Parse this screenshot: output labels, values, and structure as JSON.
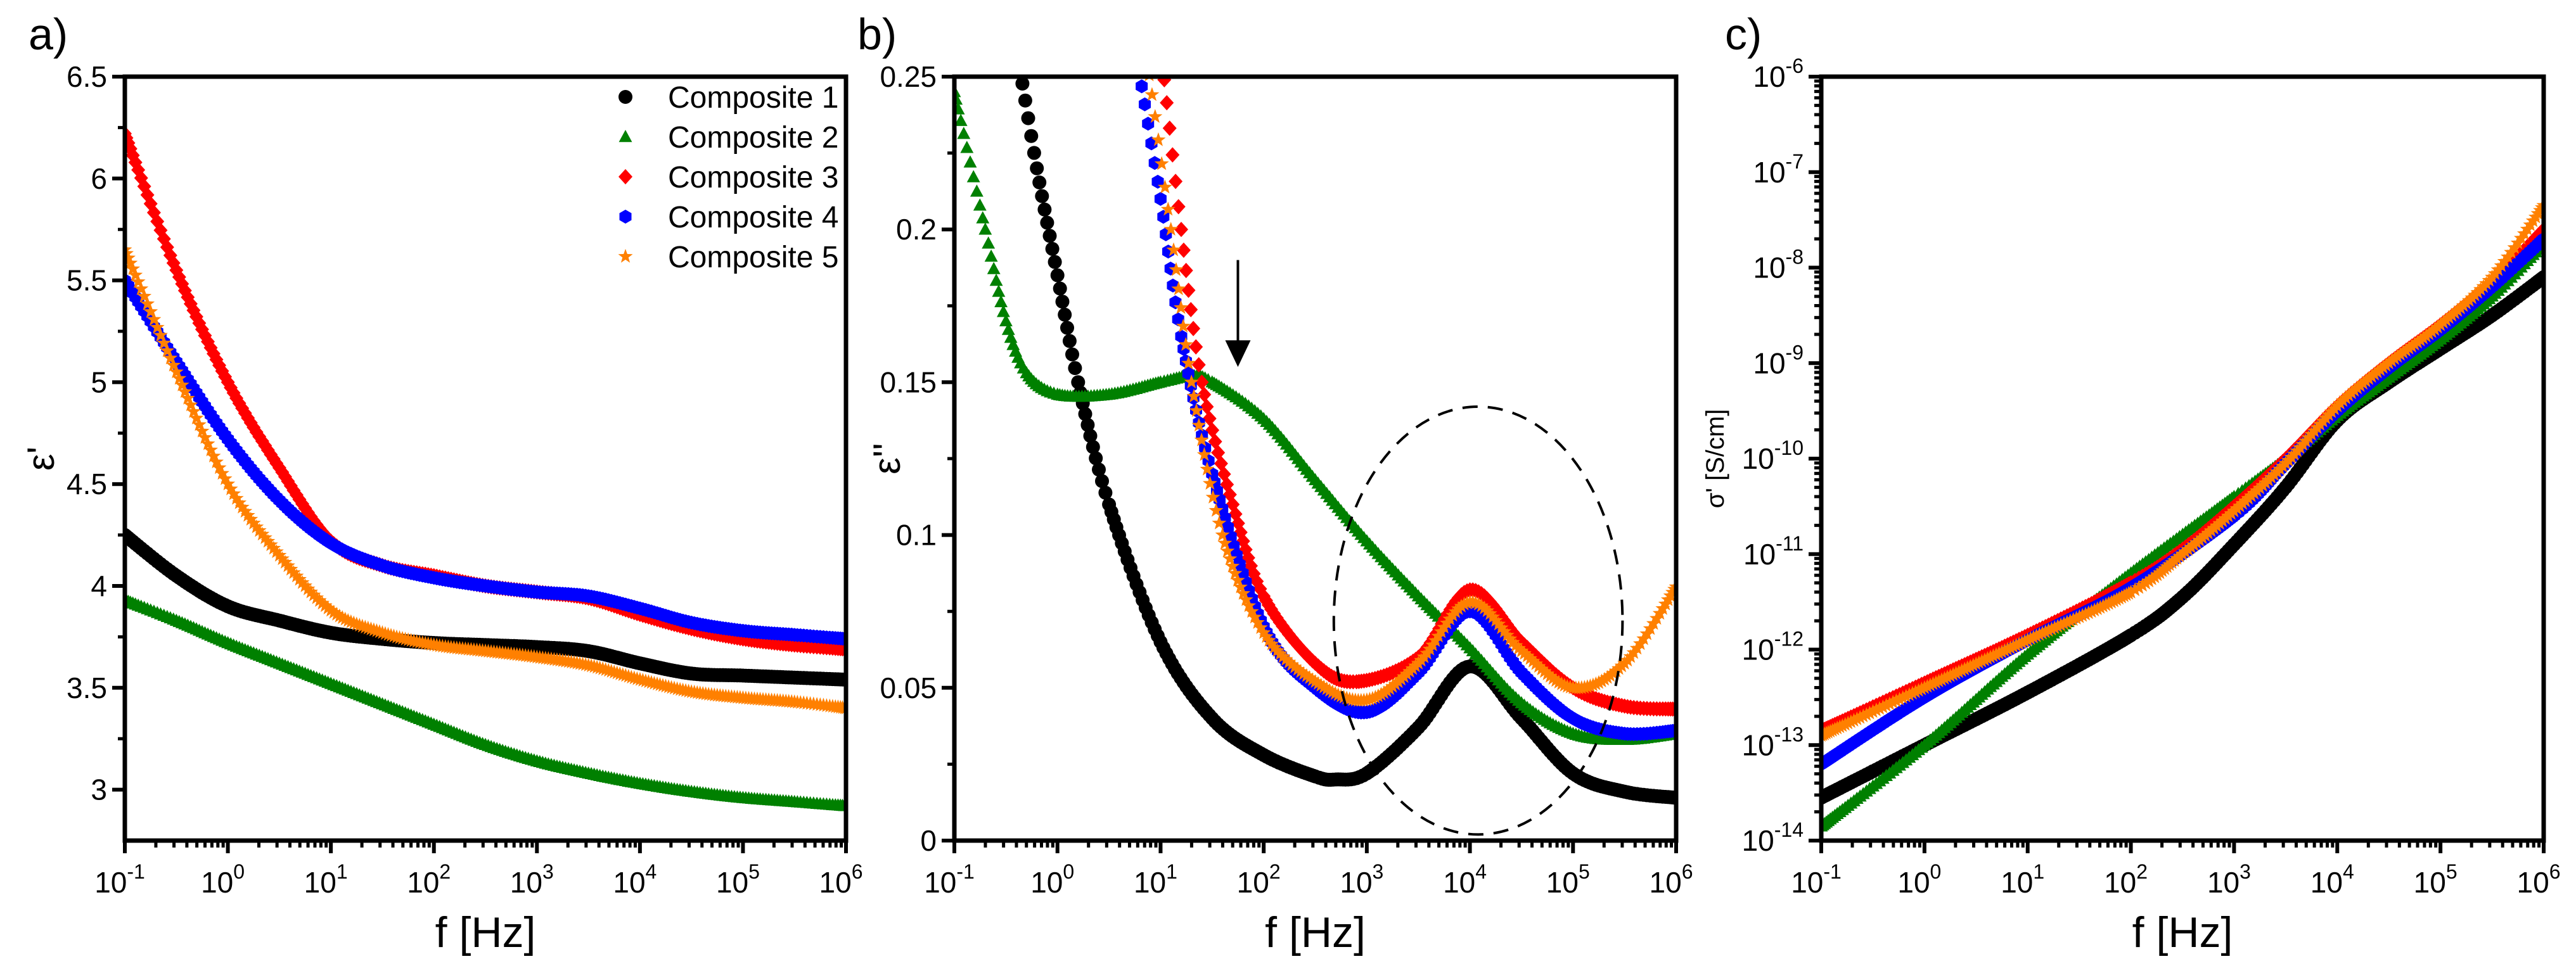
{
  "legend": [
    {
      "label": "Composite 1",
      "color": "#000000",
      "marker": "circle"
    },
    {
      "label": "Composite 2",
      "color": "#008000",
      "marker": "triangle"
    },
    {
      "label": "Composite 3",
      "color": "#ff0000",
      "marker": "diamond"
    },
    {
      "label": "Composite 4",
      "color": "#0000ff",
      "marker": "hexagon"
    },
    {
      "label": "Composite 5",
      "color": "#ff8000",
      "marker": "star"
    }
  ],
  "chart_data": [
    {
      "panel_label": "a)",
      "type": "scatter",
      "xlabel": "f [Hz]",
      "ylabel": "ε'",
      "xscale": "log",
      "xlim_log10": [
        -1,
        6
      ],
      "ylim": [
        2.75,
        6.5
      ],
      "legend_position": "top-right",
      "xticks": [
        {
          "base": "10",
          "exp": "-1",
          "v": -1
        },
        {
          "base": "10",
          "exp": "0",
          "v": 0
        },
        {
          "base": "10",
          "exp": "1",
          "v": 1
        },
        {
          "base": "10",
          "exp": "2",
          "v": 2
        },
        {
          "base": "10",
          "exp": "3",
          "v": 3
        },
        {
          "base": "10",
          "exp": "4",
          "v": 4
        },
        {
          "base": "10",
          "exp": "5",
          "v": 5
        },
        {
          "base": "10",
          "exp": "6",
          "v": 6
        }
      ],
      "yticks": [
        {
          "label": "3",
          "v": 3
        },
        {
          "label": "3.5",
          "v": 3.5
        },
        {
          "label": "4",
          "v": 4
        },
        {
          "label": "4.5",
          "v": 4.5
        },
        {
          "label": "5",
          "v": 5
        },
        {
          "label": "5.5",
          "v": 5.5
        },
        {
          "label": "6",
          "v": 6
        },
        {
          "label": "6.5",
          "v": 6.5
        }
      ],
      "series": [
        {
          "name": "Composite 1",
          "log10_f": [
            -1,
            -0.5,
            0,
            0.5,
            1,
            1.5,
            2,
            2.5,
            3,
            3.5,
            4,
            4.5,
            5,
            5.5,
            6
          ],
          "y": [
            4.25,
            4.05,
            3.9,
            3.83,
            3.77,
            3.74,
            3.72,
            3.71,
            3.7,
            3.68,
            3.62,
            3.57,
            3.56,
            3.55,
            3.54
          ]
        },
        {
          "name": "Composite 2",
          "log10_f": [
            -1,
            -0.5,
            0,
            0.5,
            1,
            1.5,
            2,
            2.5,
            3,
            3.5,
            4,
            4.5,
            5,
            5.5,
            6
          ],
          "y": [
            3.93,
            3.83,
            3.72,
            3.62,
            3.52,
            3.42,
            3.32,
            3.22,
            3.14,
            3.08,
            3.03,
            2.99,
            2.96,
            2.94,
            2.92
          ]
        },
        {
          "name": "Composite 3",
          "log10_f": [
            -1,
            -0.5,
            0,
            0.5,
            1,
            1.5,
            2,
            2.5,
            3,
            3.5,
            4,
            4.5,
            5,
            5.5,
            6
          ],
          "y": [
            6.22,
            5.55,
            5.0,
            4.58,
            4.22,
            4.1,
            4.05,
            4.0,
            3.97,
            3.94,
            3.86,
            3.79,
            3.74,
            3.71,
            3.69
          ]
        },
        {
          "name": "Composite 4",
          "log10_f": [
            -1,
            -0.5,
            0,
            0.5,
            1,
            1.5,
            2,
            2.5,
            3,
            3.5,
            4,
            4.5,
            5,
            5.5,
            6
          ],
          "y": [
            5.5,
            5.1,
            4.72,
            4.42,
            4.21,
            4.1,
            4.04,
            4.0,
            3.97,
            3.95,
            3.89,
            3.82,
            3.78,
            3.76,
            3.74
          ]
        },
        {
          "name": "Composite 5",
          "log10_f": [
            -1,
            -0.5,
            0,
            0.5,
            1,
            1.5,
            2,
            2.5,
            3,
            3.5,
            4,
            4.5,
            5,
            5.5,
            6
          ],
          "y": [
            5.65,
            5.05,
            4.5,
            4.15,
            3.88,
            3.77,
            3.71,
            3.68,
            3.65,
            3.61,
            3.54,
            3.48,
            3.45,
            3.43,
            3.4
          ]
        }
      ]
    },
    {
      "panel_label": "b)",
      "type": "scatter",
      "xlabel": "f [Hz]",
      "ylabel": "ε''",
      "xscale": "log",
      "xlim_log10": [
        -1,
        6
      ],
      "ylim": [
        0,
        0.25
      ],
      "xticks": [
        {
          "base": "10",
          "exp": "-1",
          "v": -1
        },
        {
          "base": "10",
          "exp": "0",
          "v": 0
        },
        {
          "base": "10",
          "exp": "1",
          "v": 1
        },
        {
          "base": "10",
          "exp": "2",
          "v": 2
        },
        {
          "base": "10",
          "exp": "3",
          "v": 3
        },
        {
          "base": "10",
          "exp": "4",
          "v": 4
        },
        {
          "base": "10",
          "exp": "5",
          "v": 5
        },
        {
          "base": "10",
          "exp": "6",
          "v": 6
        }
      ],
      "yticks": [
        {
          "label": "0",
          "v": 0
        },
        {
          "label": "0.05",
          "v": 0.05
        },
        {
          "label": "0.1",
          "v": 0.1
        },
        {
          "label": "0.15",
          "v": 0.15
        },
        {
          "label": "0.2",
          "v": 0.2
        },
        {
          "label": "0.25",
          "v": 0.25
        }
      ],
      "annotations": {
        "arrow": {
          "log10_f": 1.75,
          "y_from": 0.19,
          "y_to": 0.155
        },
        "dashed_ellipse": {
          "center_log10_f": 4.08,
          "center_y": 0.072,
          "half_width_decades": 1.4,
          "half_height": 0.07
        }
      },
      "series": [
        {
          "name": "Composite 1",
          "log10_f": [
            -0.4,
            -0.2,
            0,
            0.2,
            0.5,
            1,
            1.5,
            2,
            2.5,
            2.7,
            3,
            3.5,
            4,
            4.5,
            5,
            5.5,
            6
          ],
          "y": [
            0.26,
            0.22,
            0.185,
            0.15,
            0.11,
            0.065,
            0.04,
            0.028,
            0.021,
            0.02,
            0.022,
            0.037,
            0.057,
            0.04,
            0.022,
            0.016,
            0.014
          ]
        },
        {
          "name": "Composite 2",
          "log10_f": [
            -1,
            -0.7,
            -0.5,
            -0.3,
            0,
            0.5,
            1,
            1.3,
            1.5,
            2,
            2.5,
            3,
            3.5,
            4,
            4.5,
            5,
            5.5,
            6
          ],
          "y": [
            0.245,
            0.2,
            0.17,
            0.153,
            0.146,
            0.146,
            0.15,
            0.152,
            0.15,
            0.138,
            0.118,
            0.098,
            0.08,
            0.063,
            0.045,
            0.035,
            0.033,
            0.035
          ]
        },
        {
          "name": "Composite 3",
          "log10_f": [
            1.0,
            1.2,
            1.4,
            1.7,
            2,
            2.5,
            2.9,
            3.5,
            4,
            4.5,
            5,
            5.5,
            6
          ],
          "y": [
            0.26,
            0.2,
            0.15,
            0.11,
            0.08,
            0.058,
            0.052,
            0.06,
            0.082,
            0.065,
            0.05,
            0.044,
            0.043
          ]
        },
        {
          "name": "Composite 4",
          "log10_f": [
            0.75,
            1,
            1.2,
            1.5,
            2,
            2.5,
            3,
            3.5,
            4,
            4.5,
            5,
            5.5,
            6
          ],
          "y": [
            0.26,
            0.21,
            0.165,
            0.12,
            0.07,
            0.05,
            0.042,
            0.055,
            0.075,
            0.055,
            0.04,
            0.035,
            0.036
          ]
        },
        {
          "name": "Composite 5",
          "log10_f": [
            0.85,
            1.1,
            1.3,
            1.6,
            2,
            2.5,
            3,
            3.5,
            4,
            4.5,
            5,
            5.5,
            6
          ],
          "y": [
            0.26,
            0.2,
            0.15,
            0.1,
            0.068,
            0.052,
            0.046,
            0.058,
            0.078,
            0.062,
            0.05,
            0.058,
            0.083
          ]
        }
      ]
    },
    {
      "panel_label": "c)",
      "type": "scatter",
      "xlabel": "f [Hz]",
      "ylabel": "σ' [S/cm]",
      "xscale": "log",
      "yscale": "log",
      "xlim_log10": [
        -1,
        6
      ],
      "ylim_log10": [
        -14,
        -6
      ],
      "xticks": [
        {
          "base": "10",
          "exp": "-1",
          "v": -1
        },
        {
          "base": "10",
          "exp": "0",
          "v": 0
        },
        {
          "base": "10",
          "exp": "1",
          "v": 1
        },
        {
          "base": "10",
          "exp": "2",
          "v": 2
        },
        {
          "base": "10",
          "exp": "3",
          "v": 3
        },
        {
          "base": "10",
          "exp": "4",
          "v": 4
        },
        {
          "base": "10",
          "exp": "5",
          "v": 5
        },
        {
          "base": "10",
          "exp": "6",
          "v": 6
        }
      ],
      "yticks": [
        {
          "base": "10",
          "exp": "-14",
          "v": -14
        },
        {
          "base": "10",
          "exp": "-13",
          "v": -13
        },
        {
          "base": "10",
          "exp": "-12",
          "v": -12
        },
        {
          "base": "10",
          "exp": "-11",
          "v": -11
        },
        {
          "base": "10",
          "exp": "-10",
          "v": -10
        },
        {
          "base": "10",
          "exp": "-9",
          "v": -9
        },
        {
          "base": "10",
          "exp": "-8",
          "v": -8
        },
        {
          "base": "10",
          "exp": "-7",
          "v": -7
        },
        {
          "base": "10",
          "exp": "-6",
          "v": -6
        }
      ],
      "series": [
        {
          "name": "Composite 1",
          "log10_f": [
            -1,
            0,
            1,
            2,
            2.5,
            3,
            3.5,
            4,
            4.5,
            5,
            5.5,
            6
          ],
          "log10_y": [
            -13.55,
            -13.0,
            -12.45,
            -11.85,
            -11.45,
            -10.9,
            -10.3,
            -9.6,
            -9.2,
            -8.85,
            -8.5,
            -8.1
          ]
        },
        {
          "name": "Composite 2",
          "log10_f": [
            -1,
            0,
            1,
            2,
            3,
            3.5,
            4,
            4.5,
            5,
            5.5,
            6
          ],
          "log10_y": [
            -13.85,
            -13.0,
            -12.05,
            -11.2,
            -10.4,
            -10.0,
            -9.55,
            -9.15,
            -8.75,
            -8.3,
            -7.75
          ]
        },
        {
          "name": "Composite 3",
          "log10_f": [
            -1,
            0,
            1,
            2,
            2.5,
            3,
            3.5,
            4,
            4.5,
            5,
            5.5,
            6
          ],
          "log10_y": [
            -12.85,
            -12.35,
            -11.85,
            -11.3,
            -10.95,
            -10.5,
            -10.0,
            -9.45,
            -9.0,
            -8.6,
            -8.15,
            -7.6
          ]
        },
        {
          "name": "Composite 4",
          "log10_f": [
            -1,
            0,
            1,
            2,
            3,
            3.5,
            4,
            4.5,
            5,
            5.5,
            6
          ],
          "log10_y": [
            -13.2,
            -12.5,
            -11.9,
            -11.35,
            -10.6,
            -10.05,
            -9.5,
            -9.05,
            -8.65,
            -8.2,
            -7.7
          ]
        },
        {
          "name": "Composite 5",
          "log10_f": [
            -1,
            0,
            1,
            2,
            2.5,
            3,
            3.5,
            4,
            4.5,
            5,
            5.5,
            6
          ],
          "log10_y": [
            -12.9,
            -12.4,
            -11.9,
            -11.4,
            -11.0,
            -10.55,
            -10.05,
            -9.45,
            -9.0,
            -8.6,
            -8.1,
            -7.35
          ]
        }
      ]
    }
  ]
}
